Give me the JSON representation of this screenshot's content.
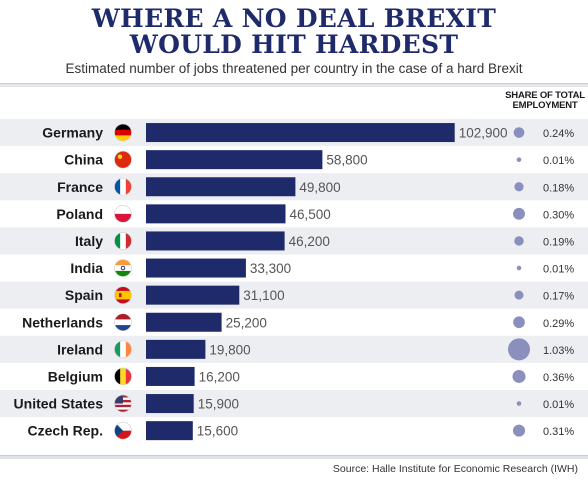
{
  "title_lines": [
    "WHERE A NO DEAL BREXIT",
    "WOULD HIT HARDEST"
  ],
  "subtitle": "Estimated number of jobs threatened per country in the case of a hard Brexit",
  "share_header_lines": [
    "SHARE OF TOTAL",
    "EMPLOYMENT"
  ],
  "source": "Source: Halle Institute for Economic Research (IWH)",
  "colors": {
    "bar": "#1f2a6b",
    "dot": "#8a8fbe",
    "row_stripe": "#eceef2"
  },
  "chart_data": {
    "type": "bar",
    "orientation": "horizontal",
    "title": "WHERE A NO DEAL BREXIT WOULD HIT HARDEST",
    "subtitle": "Estimated number of jobs threatened per country in the case of a hard Brexit",
    "xlim": [
      0,
      110000
    ],
    "grid": false,
    "categories": [
      "Germany",
      "China",
      "France",
      "Poland",
      "Italy",
      "India",
      "Spain",
      "Netherlands",
      "Ireland",
      "Belgium",
      "United States",
      "Czech Rep."
    ],
    "value_labels": [
      "102,900",
      "58,800",
      "49,800",
      "46,500",
      "46,200",
      "33,300",
      "31,100",
      "25,200",
      "19,800",
      "16,200",
      "15,900",
      "15,600"
    ],
    "values": [
      102900,
      58800,
      49800,
      46500,
      46200,
      33300,
      31100,
      25200,
      19800,
      16200,
      15900,
      15600
    ],
    "share_labels": [
      "0.24%",
      "0.01%",
      "0.18%",
      "0.30%",
      "0.19%",
      "0.01%",
      "0.17%",
      "0.29%",
      "1.03%",
      "0.36%",
      "0.01%",
      "0.31%"
    ],
    "share_values": [
      0.24,
      0.01,
      0.18,
      0.3,
      0.19,
      0.01,
      0.17,
      0.29,
      1.03,
      0.36,
      0.01,
      0.31
    ],
    "flags": [
      "germany-flag",
      "china-flag",
      "france-flag",
      "poland-flag",
      "italy-flag",
      "india-flag",
      "spain-flag",
      "netherlands-flag",
      "ireland-flag",
      "belgium-flag",
      "united-states-flag",
      "czech-republic-flag"
    ]
  }
}
